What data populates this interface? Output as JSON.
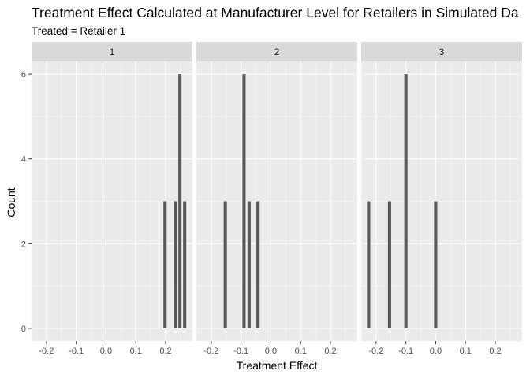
{
  "chart_data": {
    "type": "bar",
    "title": "Treatment Effect Calculated at Manufacturer Level for Retailers in Simulated Da",
    "subtitle": "Treated = Retailer 1",
    "xlabel": "Treatment Effect",
    "ylabel": "Count",
    "xlim": [
      -0.25,
      0.29
    ],
    "ylim": [
      -0.3,
      6.3
    ],
    "x_ticks": [
      -0.2,
      -0.1,
      0.0,
      0.1,
      0.2
    ],
    "x_tick_labels": [
      "-0.2",
      "-0.1",
      "0.0",
      "0.1",
      "0.2"
    ],
    "y_ticks": [
      0,
      2,
      4,
      6
    ],
    "y_tick_labels": [
      "0",
      "2",
      "4",
      "6"
    ],
    "bin_width": 0.0108,
    "grid": true,
    "bar_color": "#595959",
    "panel_background": "#ebebeb",
    "strip_background": "#d9d9d9",
    "facets": [
      {
        "label": "1",
        "bins": [
          {
            "x": 0.198,
            "count": 3
          },
          {
            "x": 0.232,
            "count": 3
          },
          {
            "x": 0.248,
            "count": 6
          },
          {
            "x": 0.264,
            "count": 3
          }
        ]
      },
      {
        "label": "2",
        "bins": [
          {
            "x": -0.153,
            "count": 3
          },
          {
            "x": -0.09,
            "count": 6
          },
          {
            "x": -0.073,
            "count": 3
          },
          {
            "x": -0.043,
            "count": 3
          }
        ]
      },
      {
        "label": "3",
        "bins": [
          {
            "x": -0.225,
            "count": 3
          },
          {
            "x": -0.155,
            "count": 3
          },
          {
            "x": -0.1,
            "count": 6
          },
          {
            "x": 0.0,
            "count": 3
          }
        ]
      }
    ]
  }
}
